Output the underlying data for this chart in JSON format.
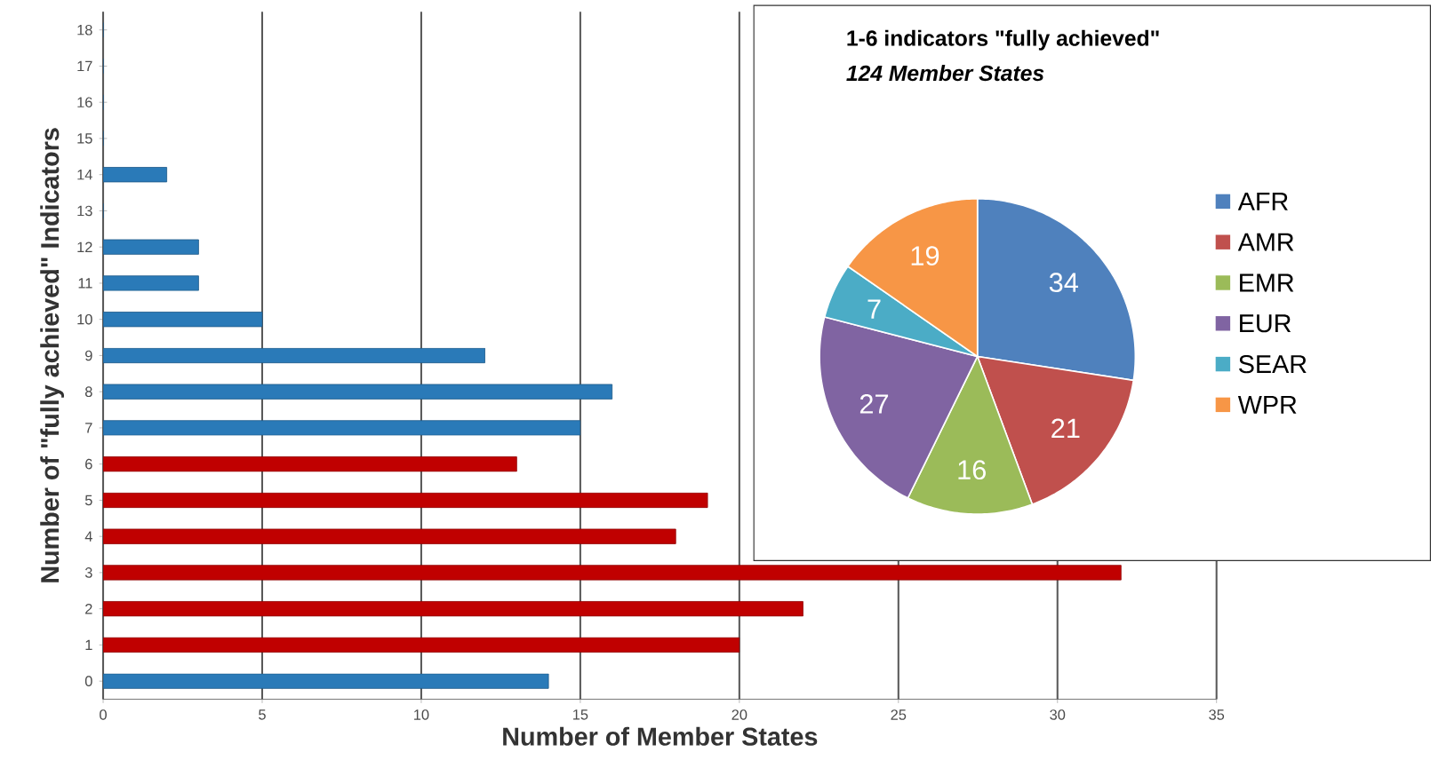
{
  "chart_data": [
    {
      "type": "bar",
      "orientation": "horizontal",
      "xlabel": "Number of Member States",
      "ylabel": "Number of \"fully achieved\" Indicators",
      "categories": [
        "18",
        "17",
        "16",
        "15",
        "14",
        "13",
        "12",
        "11",
        "10",
        "9",
        "8",
        "7",
        "6",
        "5",
        "4",
        "3",
        "2",
        "1",
        "0"
      ],
      "values": [
        0,
        0,
        0,
        0,
        2,
        0,
        3,
        3,
        5,
        12,
        16,
        15,
        13,
        19,
        18,
        32,
        22,
        20,
        14
      ],
      "colors": [
        "#2a7ab8",
        "#2a7ab8",
        "#2a7ab8",
        "#2a7ab8",
        "#2a7ab8",
        "#2a7ab8",
        "#2a7ab8",
        "#2a7ab8",
        "#2a7ab8",
        "#2a7ab8",
        "#2a7ab8",
        "#2a7ab8",
        "#c00000",
        "#c00000",
        "#c00000",
        "#c00000",
        "#c00000",
        "#c00000",
        "#2a7ab8"
      ],
      "xlim": [
        0,
        35
      ],
      "xticks": [
        0,
        5,
        10,
        15,
        20,
        25,
        30,
        35
      ],
      "grid": "x"
    },
    {
      "type": "pie",
      "title": "1-6 indicators \"fully achieved\"",
      "subtitle": "124 Member States",
      "categories": [
        "AFR",
        "AMR",
        "EMR",
        "EUR",
        "SEAR",
        "WPR"
      ],
      "values": [
        34,
        21,
        16,
        27,
        7,
        19
      ],
      "colors": [
        "#4f81bd",
        "#c0504d",
        "#9bbb59",
        "#8064a2",
        "#4bacc6",
        "#f79646"
      ],
      "data_labels": true,
      "legend": "right"
    }
  ]
}
